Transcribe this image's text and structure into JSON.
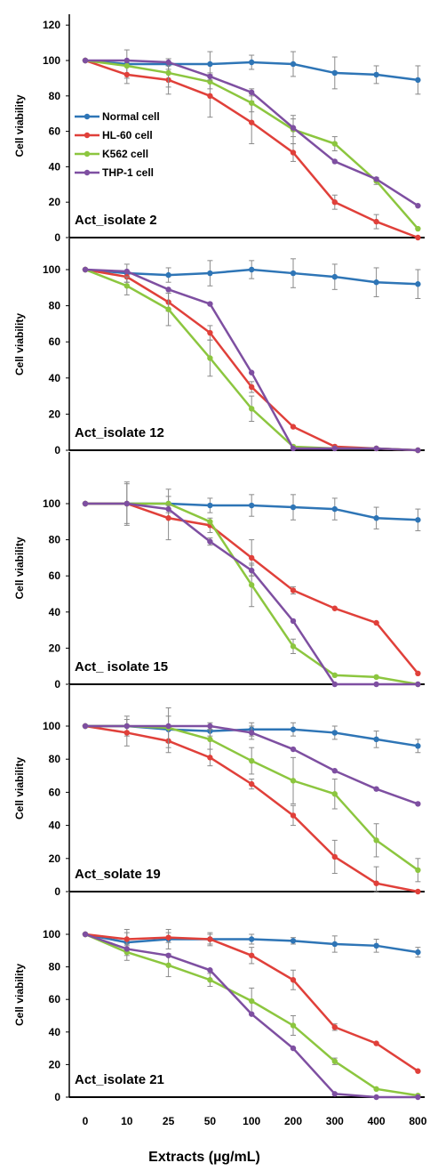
{
  "chart_data": [
    {
      "type": "line",
      "panel_label": "Act_isolate 2",
      "ylabel": "Cell viability",
      "yticks": [
        "0",
        "20",
        "40",
        "60",
        "80",
        "100",
        "120"
      ],
      "ylim": [
        0,
        120
      ],
      "categories": [
        "0",
        "10",
        "25",
        "50",
        "100",
        "200",
        "300",
        "400",
        "800"
      ],
      "legend_position": "left",
      "series": [
        {
          "name": "Normal cell",
          "color": "#2E75B6",
          "values": [
            100,
            98,
            98,
            98,
            99,
            98,
            93,
            92,
            89
          ],
          "errors": [
            0,
            8,
            3,
            7,
            4,
            7,
            9,
            5,
            8
          ]
        },
        {
          "name": "HL-60 cell",
          "color": "#E0403A",
          "values": [
            100,
            92,
            89,
            80,
            65,
            48,
            20,
            9,
            0
          ],
          "errors": [
            0,
            5,
            8,
            12,
            12,
            5,
            4,
            4,
            0
          ]
        },
        {
          "name": "K562 cell",
          "color": "#8CC63F",
          "values": [
            100,
            97,
            93,
            88,
            76,
            61,
            53,
            32,
            5
          ],
          "errors": [
            0,
            0,
            8,
            4,
            5,
            8,
            4,
            2,
            0
          ]
        },
        {
          "name": "THP-1 cell",
          "color": "#7E4FA1",
          "values": [
            100,
            100,
            99,
            91,
            82,
            62,
            43,
            33,
            18
          ],
          "errors": [
            0,
            0,
            2,
            2,
            2,
            5,
            0,
            0,
            0
          ]
        }
      ]
    },
    {
      "type": "line",
      "panel_label": "Act_isolate 12",
      "ylabel": "Cell viability",
      "yticks": [
        "0",
        "20",
        "40",
        "60",
        "80",
        "100"
      ],
      "ylim": [
        0,
        110
      ],
      "categories": [
        "0",
        "10",
        "25",
        "50",
        "100",
        "200",
        "300",
        "400",
        "800"
      ],
      "series": [
        {
          "name": "Normal cell",
          "color": "#2E75B6",
          "values": [
            100,
            98,
            97,
            98,
            100,
            98,
            96,
            93,
            92
          ],
          "errors": [
            0,
            5,
            4,
            7,
            5,
            8,
            7,
            8,
            8
          ]
        },
        {
          "name": "HL-60 cell",
          "color": "#E0403A",
          "values": [
            100,
            96,
            82,
            65,
            35,
            13,
            2,
            1,
            0
          ],
          "errors": [
            0,
            3,
            5,
            4,
            3,
            0,
            0,
            0,
            0
          ]
        },
        {
          "name": "K562 cell",
          "color": "#8CC63F",
          "values": [
            100,
            91,
            78,
            51,
            23,
            2,
            1,
            1,
            0
          ],
          "errors": [
            0,
            5,
            9,
            10,
            7,
            0,
            0,
            0,
            0
          ]
        },
        {
          "name": "THP-1 cell",
          "color": "#7E4FA1",
          "values": [
            100,
            99,
            89,
            81,
            43,
            1,
            1,
            1,
            0
          ],
          "errors": [
            0,
            0,
            0,
            0,
            0,
            0,
            0,
            0,
            0
          ]
        }
      ]
    },
    {
      "type": "line",
      "panel_label": "Act_ isolate 15",
      "ylabel": "Cell viability",
      "yticks": [
        "0",
        "20",
        "40",
        "60",
        "80",
        "100"
      ],
      "ylim": [
        0,
        110
      ],
      "categories": [
        "0",
        "10",
        "25",
        "50",
        "100",
        "200",
        "300",
        "400",
        "800"
      ],
      "series": [
        {
          "name": "Normal cell",
          "color": "#2E75B6",
          "values": [
            100,
            100,
            100,
            99,
            99,
            98,
            97,
            92,
            91
          ],
          "errors": [
            0,
            11,
            8,
            4,
            6,
            7,
            6,
            6,
            6
          ]
        },
        {
          "name": "HL-60 cell",
          "color": "#E0403A",
          "values": [
            100,
            100,
            92,
            88,
            70,
            52,
            42,
            34,
            6
          ],
          "errors": [
            0,
            12,
            12,
            4,
            10,
            2,
            0,
            0,
            0
          ]
        },
        {
          "name": "K562 cell",
          "color": "#8CC63F",
          "values": [
            100,
            100,
            100,
            90,
            55,
            21,
            5,
            4,
            0
          ],
          "errors": [
            0,
            0,
            0,
            0,
            12,
            4,
            0,
            0,
            0
          ]
        },
        {
          "name": "THP-1 cell",
          "color": "#7E4FA1",
          "values": [
            100,
            100,
            97,
            79,
            63,
            35,
            0,
            0,
            0
          ],
          "errors": [
            0,
            0,
            2,
            2,
            3,
            0,
            0,
            0,
            0
          ]
        }
      ]
    },
    {
      "type": "line",
      "panel_label": "Act_solate 19",
      "ylabel": "Cell viability",
      "yticks": [
        "0",
        "20",
        "40",
        "60",
        "80",
        "100"
      ],
      "ylim": [
        0,
        110
      ],
      "categories": [
        "0",
        "10",
        "25",
        "50",
        "100",
        "200",
        "300",
        "400",
        "800"
      ],
      "series": [
        {
          "name": "Normal cell",
          "color": "#2E75B6",
          "values": [
            100,
            100,
            98,
            97,
            98,
            98,
            96,
            92,
            88
          ],
          "errors": [
            0,
            6,
            8,
            3,
            4,
            4,
            4,
            5,
            4
          ]
        },
        {
          "name": "HL-60 cell",
          "color": "#E0403A",
          "values": [
            100,
            96,
            91,
            81,
            65,
            46,
            21,
            5,
            0
          ],
          "errors": [
            0,
            8,
            7,
            5,
            3,
            6,
            10,
            10,
            0
          ]
        },
        {
          "name": "K562 cell",
          "color": "#8CC63F",
          "values": [
            100,
            100,
            99,
            92,
            79,
            67,
            59,
            31,
            13
          ],
          "errors": [
            0,
            0,
            12,
            6,
            8,
            14,
            9,
            10,
            7
          ]
        },
        {
          "name": "THP-1 cell",
          "color": "#7E4FA1",
          "values": [
            100,
            100,
            100,
            100,
            96,
            86,
            73,
            62,
            53
          ],
          "errors": [
            0,
            0,
            0,
            2,
            4,
            0,
            0,
            0,
            0
          ]
        }
      ]
    },
    {
      "type": "line",
      "panel_label": "Act_isolate 21",
      "ylabel": "Cell viability",
      "yticks": [
        "0",
        "20",
        "40",
        "60",
        "80",
        "100"
      ],
      "ylim": [
        0,
        110
      ],
      "categories": [
        "0",
        "10",
        "25",
        "50",
        "100",
        "200",
        "300",
        "400",
        "800"
      ],
      "xlabel": "Extracts (µg/mL)",
      "series": [
        {
          "name": "Normal cell",
          "color": "#2E75B6",
          "values": [
            100,
            95,
            97,
            97,
            97,
            96,
            94,
            93,
            89
          ],
          "errors": [
            0,
            8,
            6,
            4,
            3,
            2,
            5,
            4,
            3
          ]
        },
        {
          "name": "HL-60 cell",
          "color": "#E0403A",
          "values": [
            100,
            97,
            98,
            97,
            87,
            72,
            43,
            33,
            16
          ],
          "errors": [
            0,
            4,
            3,
            3,
            5,
            6,
            2,
            0,
            0
          ]
        },
        {
          "name": "K562 cell",
          "color": "#8CC63F",
          "values": [
            100,
            89,
            81,
            72,
            59,
            44,
            22,
            5,
            1
          ],
          "errors": [
            0,
            5,
            7,
            4,
            8,
            6,
            2,
            0,
            0
          ]
        },
        {
          "name": "THP-1 cell",
          "color": "#7E4FA1",
          "values": [
            100,
            91,
            87,
            78,
            51,
            30,
            2,
            0,
            0
          ],
          "errors": [
            0,
            0,
            0,
            0,
            0,
            0,
            0,
            0,
            0
          ]
        }
      ]
    }
  ]
}
